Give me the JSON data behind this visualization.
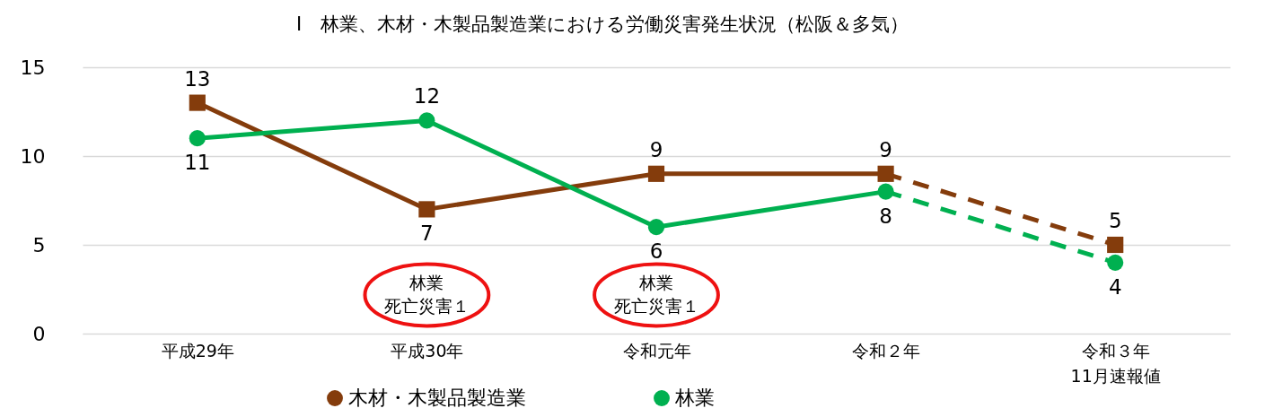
{
  "chart_data": {
    "type": "line",
    "title": "Ⅰ　林業、木材・木製品製造業における労働災害発生状況（松阪＆多気）",
    "categories": [
      "平成29年",
      "平成30年",
      "令和元年",
      "令和２年",
      "令和３年\n11月速報値"
    ],
    "series": [
      {
        "name": "木材・木製品製造業",
        "color": "#843c0c",
        "marker": "square",
        "line_style": "solid",
        "values": [
          13,
          7,
          9,
          9,
          null
        ],
        "value_labels": [
          "13",
          "7",
          "9",
          "9",
          null
        ]
      },
      {
        "color": "#843c0c",
        "marker": "square",
        "line_style": "dashed",
        "values": [
          null,
          null,
          null,
          9,
          5
        ],
        "value_labels": [
          null,
          null,
          null,
          null,
          "5"
        ]
      },
      {
        "name": "林業",
        "color": "#00b050",
        "marker": "circle",
        "line_style": "solid",
        "values": [
          11,
          12,
          6,
          8,
          null
        ],
        "value_labels": [
          "11",
          "12",
          "6",
          "8",
          null
        ]
      },
      {
        "color": "#00b050",
        "marker": "circle",
        "line_style": "dashed",
        "values": [
          null,
          null,
          null,
          8,
          4
        ],
        "value_labels": [
          null,
          null,
          null,
          null,
          "4"
        ]
      }
    ],
    "ylim": [
      0,
      15
    ],
    "yticks": [
      0,
      5,
      10,
      15
    ],
    "grid": "y",
    "legend": "bottom",
    "annotations": [
      "林業",
      "死亡災害１",
      "林業",
      "死亡災害１"
    ]
  }
}
